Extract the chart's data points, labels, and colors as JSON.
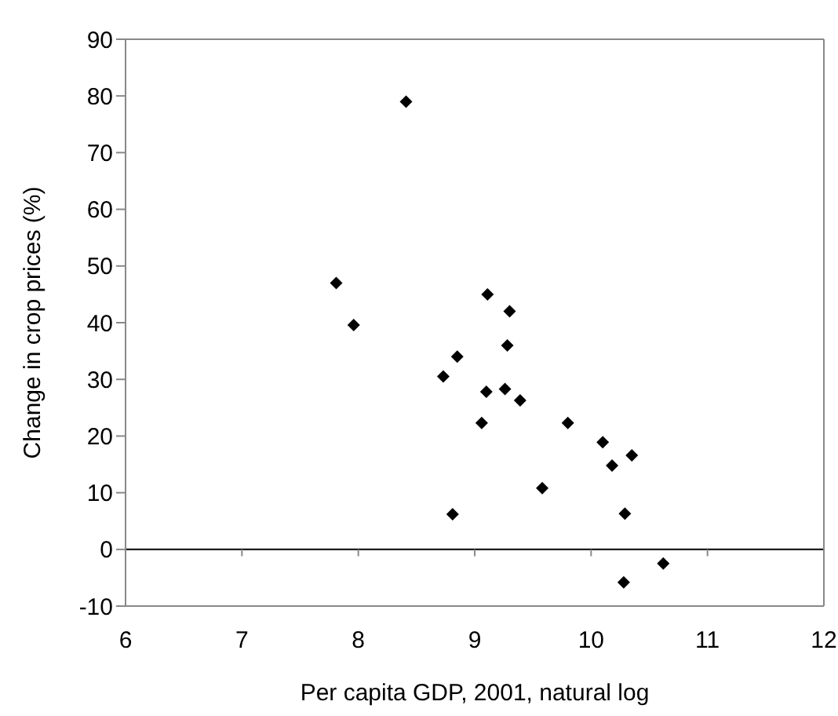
{
  "chart_data": {
    "type": "scatter",
    "xlabel": "Per capita GDP, 2001, natural log",
    "ylabel": "Change in crop prices  (%)",
    "x": [
      7.81,
      7.96,
      8.41,
      9.11,
      9.3,
      9.28,
      8.73,
      8.85,
      9.1,
      9.06,
      9.26,
      9.39,
      8.81,
      9.58,
      9.8,
      10.1,
      10.18,
      10.35,
      10.29,
      10.28,
      10.62
    ],
    "values": [
      47,
      39.6,
      79,
      45,
      42,
      36,
      30.5,
      34,
      27.8,
      22.3,
      28.3,
      26.3,
      6.2,
      10.8,
      22.3,
      18.9,
      14.8,
      16.6,
      6.3,
      -5.8,
      -2.5
    ],
    "color": "#000000",
    "marker": "diamond",
    "xlim": [
      6,
      12
    ],
    "xticks": [
      6,
      7,
      8,
      9,
      10,
      11,
      12
    ],
    "ylim": [
      -10,
      90
    ],
    "yticks": [
      -10,
      0,
      10,
      20,
      30,
      40,
      50,
      60,
      70,
      80,
      90
    ],
    "ref_lines": [
      {
        "axis": "y",
        "value": 0,
        "color": "#000000"
      }
    ],
    "grid": false,
    "legend": false
  }
}
